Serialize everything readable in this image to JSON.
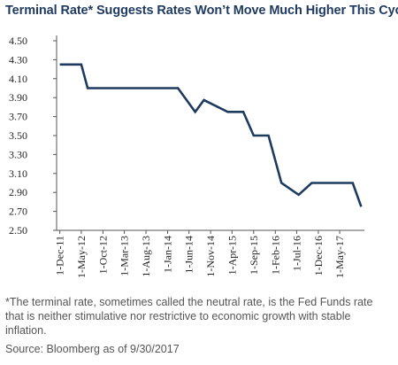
{
  "chart_data": {
    "type": "line",
    "title": "Terminal Rate* Suggests Rates Won’t Move Much Higher This Cycle",
    "xlabel": "",
    "ylabel": "",
    "ylim": [
      2.5,
      4.5
    ],
    "yticks": [
      "4.50",
      "4.30",
      "4.10",
      "3.90",
      "3.70",
      "3.50",
      "3.30",
      "3.10",
      "2.90",
      "2.70",
      "2.50"
    ],
    "ytick_values": [
      4.5,
      4.3,
      4.1,
      3.9,
      3.7,
      3.5,
      3.3,
      3.1,
      2.9,
      2.7,
      2.5
    ],
    "xticks": [
      "1-Dec-11",
      "1-May-12",
      "1-Oct-12",
      "1-Mar-13",
      "1-Aug-13",
      "1-Jan-14",
      "1-Jun-14",
      "1-Nov-14",
      "1-Apr-15",
      "1-Sep-15",
      "1-Feb-16",
      "1-Jul-16",
      "1-Dec-16",
      "1-May-17"
    ],
    "grid": false,
    "line_color": "#1f3a5f",
    "series": [
      {
        "x": [
          "2011-12-01",
          "2012-05-01",
          "2012-06-15",
          "2014-01-01",
          "2014-03-15",
          "2014-07-15",
          "2014-09-15",
          "2015-03-01",
          "2015-05-20",
          "2015-06-20",
          "2015-09-01",
          "2015-12-15",
          "2016-03-15",
          "2016-07-15",
          "2016-10-15",
          "2017-05-01",
          "2017-08-01",
          "2017-09-30"
        ],
        "values": [
          4.25,
          4.25,
          4.0,
          4.0,
          4.0,
          3.75,
          3.875,
          3.75,
          3.75,
          3.75,
          3.5,
          3.5,
          3.0,
          2.875,
          3.0,
          3.0,
          3.0,
          2.75
        ]
      }
    ]
  },
  "footnote": "*The terminal rate, sometimes called the neutral rate, is the Fed Funds rate that is neither stimulative nor restrictive to economic growth with stable inflation.",
  "source": "Source: Bloomberg as of 9/30/2017"
}
